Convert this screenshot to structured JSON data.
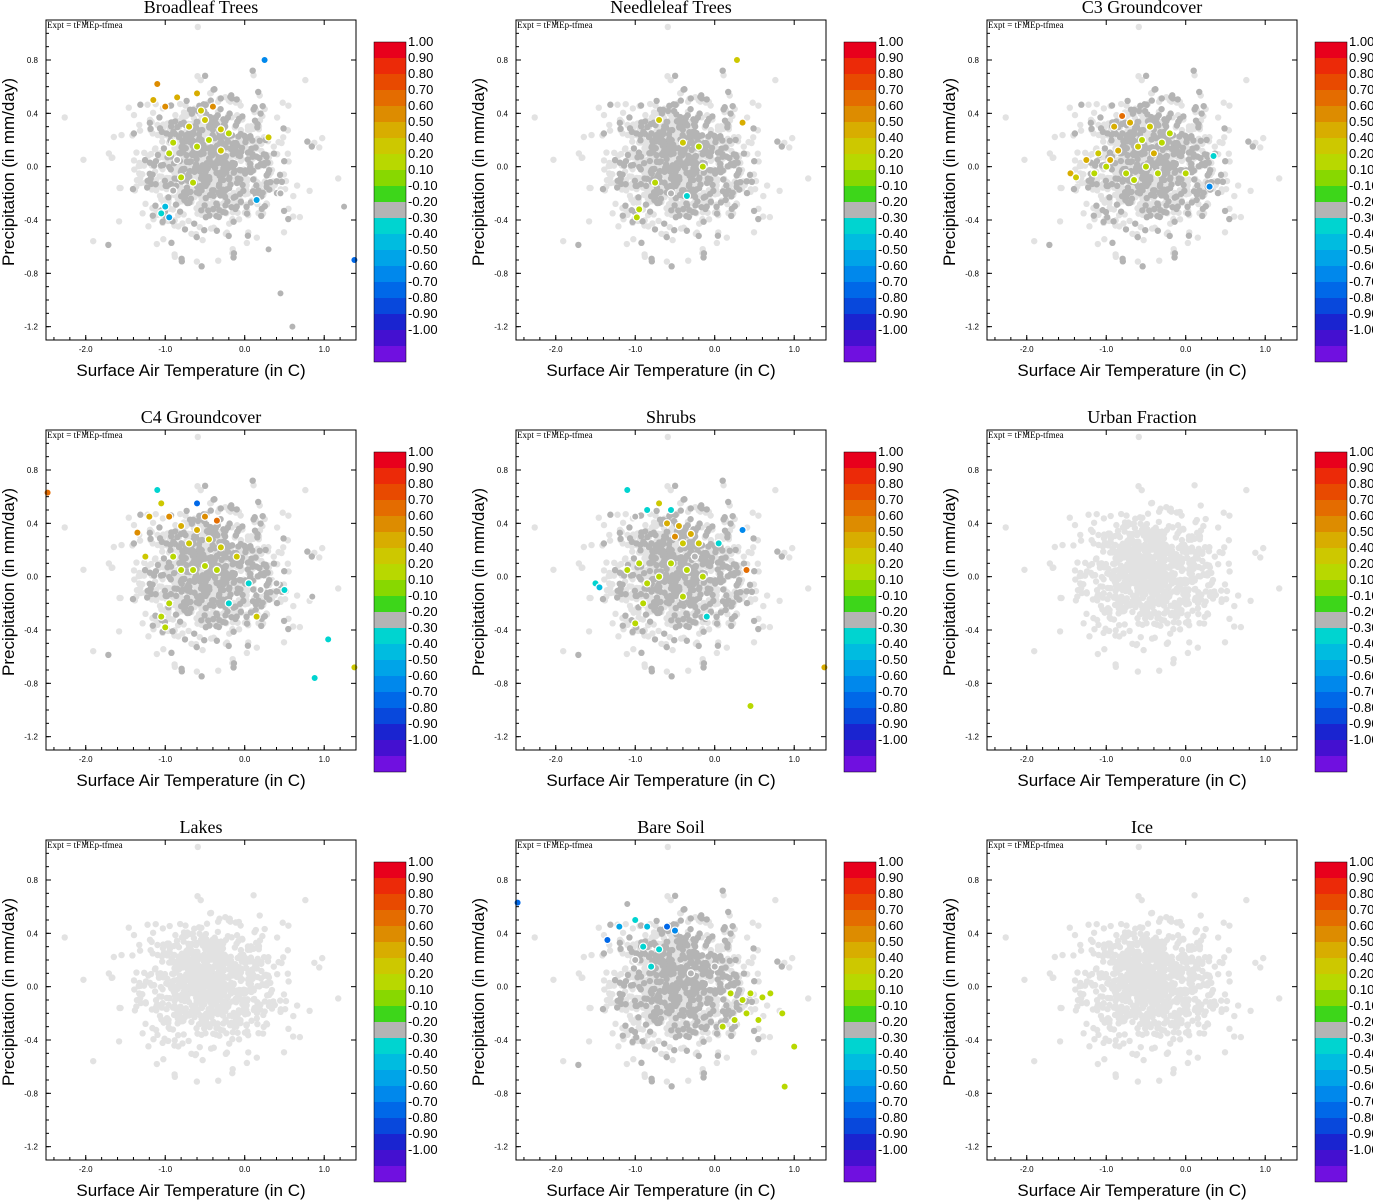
{
  "figure": {
    "expt_label": "Expt = tFMEp-tfmea",
    "xlabel": "Surface Air Temperature (in C)",
    "ylabel": "Precipitation (in mm/day)"
  },
  "colorbar": {
    "labels": [
      "1.00",
      "0.90",
      "0.80",
      "0.70",
      "0.60",
      "0.50",
      "0.40",
      "0.20",
      "0.10",
      "-0.10",
      "-0.20",
      "-0.30",
      "-0.40",
      "-0.50",
      "-0.60",
      "-0.70",
      "-0.80",
      "-0.90",
      "-1.00"
    ],
    "colors": [
      "#e8001c",
      "#ec2a08",
      "#e84a00",
      "#e46c00",
      "#dd8c00",
      "#d8ad00",
      "#cdc800",
      "#b8d800",
      "#88d800",
      "#3dd61a",
      "#b4b4b4",
      "#00d4d0",
      "#00bce0",
      "#00a4e8",
      "#0088ec",
      "#0068e8",
      "#0848dc",
      "#1a24d0",
      "#4410d0",
      "#7010e0"
    ],
    "neutral_color": "#b4b4b4",
    "background_point_color": "#e2e2e2"
  },
  "chart_data": [
    {
      "type": "scatter",
      "title": "Broadleaf Trees",
      "xlabel": "Surface Air Temperature (in C)",
      "ylabel": "Precipitation (in mm/day)",
      "xlim": [
        -2.5,
        1.4
      ],
      "ylim": [
        -1.3,
        1.1
      ],
      "xticks": [
        -2.0,
        -1.0,
        0.0,
        1.0
      ],
      "yticks": [
        0.8,
        0.4,
        0.0,
        -0.4,
        -0.8,
        -1.2
      ],
      "colored_points": [
        {
          "x": -1.1,
          "y": 0.62,
          "v": 0.55
        },
        {
          "x": -1.15,
          "y": 0.5,
          "v": 0.45
        },
        {
          "x": -1.0,
          "y": 0.45,
          "v": 0.6
        },
        {
          "x": -0.85,
          "y": 0.52,
          "v": 0.5
        },
        {
          "x": -0.6,
          "y": 0.55,
          "v": 0.45
        },
        {
          "x": -0.4,
          "y": 0.45,
          "v": 0.55
        },
        {
          "x": -0.7,
          "y": 0.3,
          "v": 0.35
        },
        {
          "x": -0.5,
          "y": 0.35,
          "v": 0.25
        },
        {
          "x": -0.3,
          "y": 0.28,
          "v": 0.3
        },
        {
          "x": -0.2,
          "y": 0.25,
          "v": 0.15
        },
        {
          "x": 0.3,
          "y": 0.22,
          "v": 0.35
        },
        {
          "x": -0.9,
          "y": 0.18,
          "v": 0.15
        },
        {
          "x": -0.6,
          "y": 0.15,
          "v": 0.2
        },
        {
          "x": -0.95,
          "y": 0.1,
          "v": 0.15
        },
        {
          "x": -0.8,
          "y": -0.08,
          "v": 0.2
        },
        {
          "x": -0.65,
          "y": -0.12,
          "v": 0.15
        },
        {
          "x": -0.3,
          "y": 0.12,
          "v": 0.25
        },
        {
          "x": 0.25,
          "y": 0.8,
          "v": -0.65
        },
        {
          "x": -0.9,
          "y": -0.18,
          "v": -0.25
        },
        {
          "x": -1.0,
          "y": -0.3,
          "v": -0.45
        },
        {
          "x": -0.95,
          "y": -0.38,
          "v": -0.5
        },
        {
          "x": -1.05,
          "y": -0.35,
          "v": -0.35
        },
        {
          "x": -0.85,
          "y": 0.05,
          "v": -0.2
        },
        {
          "x": 0.15,
          "y": -0.25,
          "v": -0.55
        },
        {
          "x": 0.45,
          "y": -0.2,
          "v": -0.25
        },
        {
          "x": 0.3,
          "y": -0.62,
          "v": -0.25
        },
        {
          "x": 0.45,
          "y": -0.95,
          "v": -0.2
        },
        {
          "x": 0.6,
          "y": -1.2,
          "v": -0.25
        },
        {
          "x": 1.25,
          "y": -0.3,
          "v": -0.2
        },
        {
          "x": 1.38,
          "y": -0.7,
          "v": -0.75
        },
        {
          "x": -0.55,
          "y": 0.42,
          "v": 0.4
        },
        {
          "x": -0.45,
          "y": 0.2,
          "v": 0.18
        }
      ]
    },
    {
      "type": "scatter",
      "title": "Needleleaf Trees",
      "xlabel": "Surface Air Temperature (in C)",
      "ylabel": "Precipitation (in mm/day)",
      "xlim": [
        -2.5,
        1.4
      ],
      "ylim": [
        -1.3,
        1.1
      ],
      "xticks": [
        -2.0,
        -1.0,
        0.0,
        1.0
      ],
      "yticks": [
        0.8,
        0.4,
        0.0,
        -0.4,
        -0.8,
        -1.2
      ],
      "colored_points": [
        {
          "x": 0.28,
          "y": 0.8,
          "v": 0.4
        },
        {
          "x": 0.35,
          "y": 0.33,
          "v": 0.45
        },
        {
          "x": -0.7,
          "y": 0.35,
          "v": 0.4
        },
        {
          "x": -0.4,
          "y": 0.18,
          "v": 0.3
        },
        {
          "x": -0.2,
          "y": 0.15,
          "v": 0.15
        },
        {
          "x": -0.95,
          "y": -0.32,
          "v": 0.15
        },
        {
          "x": -0.98,
          "y": -0.38,
          "v": 0.2
        },
        {
          "x": -0.75,
          "y": -0.12,
          "v": 0.15
        },
        {
          "x": -0.55,
          "y": -0.2,
          "v": -0.25
        },
        {
          "x": -0.35,
          "y": -0.22,
          "v": -0.3
        },
        {
          "x": -0.15,
          "y": 0.0,
          "v": 0.12
        }
      ]
    },
    {
      "type": "scatter",
      "title": "C3 Groundcover",
      "xlabel": "Surface Air Temperature (in C)",
      "ylabel": "Precipitation (in mm/day)",
      "xlim": [
        -2.5,
        1.4
      ],
      "ylim": [
        -1.3,
        1.1
      ],
      "xticks": [
        -2.0,
        -1.0,
        0.0,
        1.0
      ],
      "yticks": [
        0.8,
        0.4,
        0.0,
        -0.4,
        -0.8,
        -1.2
      ],
      "colored_points": [
        {
          "x": -0.8,
          "y": 0.38,
          "v": 0.65
        },
        {
          "x": -0.9,
          "y": 0.3,
          "v": 0.45
        },
        {
          "x": -0.7,
          "y": 0.33,
          "v": 0.5
        },
        {
          "x": -1.45,
          "y": -0.05,
          "v": 0.45
        },
        {
          "x": -1.38,
          "y": -0.08,
          "v": 0.4
        },
        {
          "x": -1.25,
          "y": 0.05,
          "v": 0.45
        },
        {
          "x": -1.1,
          "y": 0.1,
          "v": 0.4
        },
        {
          "x": -0.95,
          "y": 0.05,
          "v": 0.5
        },
        {
          "x": -0.85,
          "y": 0.12,
          "v": 0.45
        },
        {
          "x": -0.6,
          "y": 0.15,
          "v": 0.4
        },
        {
          "x": -0.4,
          "y": 0.1,
          "v": 0.45
        },
        {
          "x": -0.55,
          "y": 0.2,
          "v": 0.15
        },
        {
          "x": -0.3,
          "y": 0.18,
          "v": 0.15
        },
        {
          "x": -0.2,
          "y": 0.25,
          "v": 0.2
        },
        {
          "x": -1.0,
          "y": 0.0,
          "v": 0.15
        },
        {
          "x": -0.75,
          "y": -0.05,
          "v": 0.15
        },
        {
          "x": -0.65,
          "y": -0.1,
          "v": 0.2
        },
        {
          "x": -0.5,
          "y": 0.0,
          "v": 0.15
        },
        {
          "x": -0.35,
          "y": -0.05,
          "v": 0.12
        },
        {
          "x": 0.0,
          "y": -0.05,
          "v": 0.15
        },
        {
          "x": -1.15,
          "y": -0.05,
          "v": 0.2
        },
        {
          "x": 0.3,
          "y": -0.15,
          "v": -0.65
        },
        {
          "x": 0.35,
          "y": 0.08,
          "v": -0.35
        },
        {
          "x": -0.45,
          "y": 0.3,
          "v": 0.25
        }
      ]
    },
    {
      "type": "scatter",
      "title": "C4 Groundcover",
      "xlabel": "Surface Air Temperature (in C)",
      "ylabel": "Precipitation (in mm/day)",
      "xlim": [
        -2.5,
        1.4
      ],
      "ylim": [
        -1.3,
        1.1
      ],
      "xticks": [
        -2.0,
        -1.0,
        0.0,
        1.0
      ],
      "yticks": [
        0.8,
        0.4,
        0.0,
        -0.4,
        -0.8,
        -1.2
      ],
      "colored_points": [
        {
          "x": -2.48,
          "y": 0.63,
          "v": 0.7
        },
        {
          "x": -1.35,
          "y": 0.33,
          "v": 0.6
        },
        {
          "x": -1.1,
          "y": 0.65,
          "v": -0.3
        },
        {
          "x": -1.05,
          "y": 0.55,
          "v": 0.4
        },
        {
          "x": -1.2,
          "y": 0.45,
          "v": 0.5
        },
        {
          "x": -0.95,
          "y": 0.45,
          "v": 0.55
        },
        {
          "x": -0.6,
          "y": 0.55,
          "v": -0.7
        },
        {
          "x": -0.5,
          "y": 0.45,
          "v": 0.6
        },
        {
          "x": -0.35,
          "y": 0.42,
          "v": 0.65
        },
        {
          "x": -0.8,
          "y": 0.38,
          "v": 0.45
        },
        {
          "x": -0.6,
          "y": 0.35,
          "v": 0.5
        },
        {
          "x": -0.7,
          "y": 0.25,
          "v": 0.4
        },
        {
          "x": -0.45,
          "y": 0.28,
          "v": 0.35
        },
        {
          "x": -0.3,
          "y": 0.22,
          "v": 0.3
        },
        {
          "x": -0.1,
          "y": 0.15,
          "v": 0.25
        },
        {
          "x": -0.9,
          "y": 0.15,
          "v": 0.15
        },
        {
          "x": -0.8,
          "y": 0.05,
          "v": 0.15
        },
        {
          "x": -0.65,
          "y": 0.05,
          "v": 0.15
        },
        {
          "x": -0.5,
          "y": 0.08,
          "v": 0.15
        },
        {
          "x": -0.35,
          "y": 0.05,
          "v": 0.15
        },
        {
          "x": -1.25,
          "y": 0.15,
          "v": 0.25
        },
        {
          "x": -1.05,
          "y": -0.3,
          "v": 0.15
        },
        {
          "x": -1.0,
          "y": -0.38,
          "v": 0.2
        },
        {
          "x": -0.95,
          "y": -0.2,
          "v": 0.15
        },
        {
          "x": 0.15,
          "y": -0.3,
          "v": 0.35
        },
        {
          "x": 0.05,
          "y": -0.05,
          "v": -0.3
        },
        {
          "x": 0.2,
          "y": -0.1,
          "v": -0.25
        },
        {
          "x": 0.4,
          "y": -0.05,
          "v": -0.2
        },
        {
          "x": 0.5,
          "y": -0.1,
          "v": -0.3
        },
        {
          "x": 0.85,
          "y": -0.15,
          "v": -0.25
        },
        {
          "x": 1.05,
          "y": -0.47,
          "v": -0.3
        },
        {
          "x": 0.88,
          "y": -0.76,
          "v": -0.3
        },
        {
          "x": 1.38,
          "y": -0.68,
          "v": 0.3
        },
        {
          "x": -0.2,
          "y": -0.2,
          "v": -0.35
        }
      ]
    },
    {
      "type": "scatter",
      "title": "Shrubs",
      "xlabel": "Surface Air Temperature (in C)",
      "ylabel": "Precipitation (in mm/day)",
      "xlim": [
        -2.5,
        1.4
      ],
      "ylim": [
        -1.3,
        1.1
      ],
      "xticks": [
        -2.0,
        -1.0,
        0.0,
        1.0
      ],
      "yticks": [
        0.8,
        0.4,
        0.0,
        -0.4,
        -0.8,
        -1.2
      ],
      "colored_points": [
        {
          "x": -1.1,
          "y": 0.65,
          "v": -0.3
        },
        {
          "x": -1.0,
          "y": 0.45,
          "v": -0.25
        },
        {
          "x": -0.85,
          "y": 0.5,
          "v": -0.35
        },
        {
          "x": -0.7,
          "y": 0.55,
          "v": 0.4
        },
        {
          "x": -0.55,
          "y": 0.5,
          "v": -0.3
        },
        {
          "x": -0.6,
          "y": 0.4,
          "v": 0.45
        },
        {
          "x": -0.45,
          "y": 0.38,
          "v": 0.5
        },
        {
          "x": -0.3,
          "y": 0.32,
          "v": 0.45
        },
        {
          "x": -0.2,
          "y": 0.25,
          "v": 0.4
        },
        {
          "x": -0.5,
          "y": 0.3,
          "v": 0.55
        },
        {
          "x": -0.4,
          "y": 0.25,
          "v": 0.35
        },
        {
          "x": 0.05,
          "y": 0.25,
          "v": -0.35
        },
        {
          "x": 0.35,
          "y": 0.35,
          "v": -0.65
        },
        {
          "x": 0.4,
          "y": 0.05,
          "v": 0.65
        },
        {
          "x": -1.5,
          "y": -0.05,
          "v": -0.3
        },
        {
          "x": -1.45,
          "y": -0.08,
          "v": -0.45
        },
        {
          "x": -1.1,
          "y": 0.05,
          "v": 0.15
        },
        {
          "x": -0.95,
          "y": 0.1,
          "v": 0.15
        },
        {
          "x": -0.85,
          "y": -0.05,
          "v": 0.2
        },
        {
          "x": -0.7,
          "y": 0.0,
          "v": 0.15
        },
        {
          "x": -0.55,
          "y": 0.1,
          "v": 0.15
        },
        {
          "x": -0.35,
          "y": 0.05,
          "v": 0.15
        },
        {
          "x": -0.15,
          "y": 0.0,
          "v": 0.15
        },
        {
          "x": -1.0,
          "y": -0.35,
          "v": 0.15
        },
        {
          "x": -0.9,
          "y": -0.2,
          "v": 0.2
        },
        {
          "x": -0.4,
          "y": -0.15,
          "v": 0.15
        },
        {
          "x": -0.1,
          "y": -0.3,
          "v": -0.3
        },
        {
          "x": 0.45,
          "y": -0.97,
          "v": 0.15
        },
        {
          "x": 1.38,
          "y": -0.68,
          "v": 0.5
        },
        {
          "x": -0.25,
          "y": 0.15,
          "v": -0.25
        }
      ]
    },
    {
      "type": "scatter",
      "title": "Urban Fraction",
      "xlabel": "Surface Air Temperature (in C)",
      "ylabel": "Precipitation (in mm/day)",
      "xlim": [
        -2.5,
        1.4
      ],
      "ylim": [
        -1.3,
        1.1
      ],
      "xticks": [
        -2.0,
        -1.0,
        0.0,
        1.0
      ],
      "yticks": [
        0.8,
        0.4,
        0.0,
        -0.4,
        -0.8,
        -1.2
      ],
      "colored_points": []
    },
    {
      "type": "scatter",
      "title": "Lakes",
      "xlabel": "Surface Air Temperature (in C)",
      "ylabel": "Precipitation (in mm/day)",
      "xlim": [
        -2.5,
        1.4
      ],
      "ylim": [
        -1.3,
        1.1
      ],
      "xticks": [
        -2.0,
        -1.0,
        0.0,
        1.0
      ],
      "yticks": [
        0.8,
        0.4,
        0.0,
        -0.4,
        -0.8,
        -1.2
      ],
      "colored_points": []
    },
    {
      "type": "scatter",
      "title": "Bare Soil",
      "xlabel": "Surface Air Temperature (in C)",
      "ylabel": "Precipitation (in mm/day)",
      "xlim": [
        -2.5,
        1.4
      ],
      "ylim": [
        -1.3,
        1.1
      ],
      "xticks": [
        -2.0,
        -1.0,
        0.0,
        1.0
      ],
      "yticks": [
        0.8,
        0.4,
        0.0,
        -0.4,
        -0.8,
        -1.2
      ],
      "colored_points": [
        {
          "x": -2.48,
          "y": 0.63,
          "v": -0.75
        },
        {
          "x": -1.35,
          "y": 0.35,
          "v": -0.7
        },
        {
          "x": -1.2,
          "y": 0.45,
          "v": -0.55
        },
        {
          "x": -1.1,
          "y": 0.62,
          "v": -0.25
        },
        {
          "x": -1.0,
          "y": 0.5,
          "v": -0.3
        },
        {
          "x": -0.85,
          "y": 0.45,
          "v": -0.45
        },
        {
          "x": -0.6,
          "y": 0.45,
          "v": -0.75
        },
        {
          "x": -0.5,
          "y": 0.42,
          "v": -0.6
        },
        {
          "x": -0.9,
          "y": 0.3,
          "v": -0.3
        },
        {
          "x": -0.7,
          "y": 0.28,
          "v": -0.35
        },
        {
          "x": -1.0,
          "y": 0.2,
          "v": -0.25
        },
        {
          "x": -0.8,
          "y": 0.15,
          "v": -0.3
        },
        {
          "x": 0.0,
          "y": 0.15,
          "v": -0.25
        },
        {
          "x": 0.2,
          "y": -0.05,
          "v": 0.15
        },
        {
          "x": 0.35,
          "y": -0.1,
          "v": 0.15
        },
        {
          "x": 0.45,
          "y": -0.05,
          "v": 0.2
        },
        {
          "x": 0.6,
          "y": -0.08,
          "v": 0.15
        },
        {
          "x": 0.7,
          "y": -0.05,
          "v": 0.15
        },
        {
          "x": 0.25,
          "y": -0.25,
          "v": 0.15
        },
        {
          "x": 0.4,
          "y": -0.2,
          "v": 0.2
        },
        {
          "x": 0.55,
          "y": -0.25,
          "v": 0.15
        },
        {
          "x": 0.85,
          "y": -0.2,
          "v": 0.15
        },
        {
          "x": 0.1,
          "y": -0.3,
          "v": 0.2
        },
        {
          "x": 1.0,
          "y": -0.45,
          "v": 0.15
        },
        {
          "x": 0.88,
          "y": -0.75,
          "v": 0.15
        },
        {
          "x": -0.3,
          "y": 0.1,
          "v": -0.2
        }
      ]
    },
    {
      "type": "scatter",
      "title": "Ice",
      "xlabel": "Surface Air Temperature (in C)",
      "ylabel": "Precipitation (in mm/day)",
      "xlim": [
        -2.5,
        1.4
      ],
      "ylim": [
        -1.3,
        1.1
      ],
      "xticks": [
        -2.0,
        -1.0,
        0.0,
        1.0
      ],
      "yticks": [
        0.8,
        0.4,
        0.0,
        -0.4,
        -0.8,
        -1.2
      ],
      "colored_points": []
    }
  ]
}
